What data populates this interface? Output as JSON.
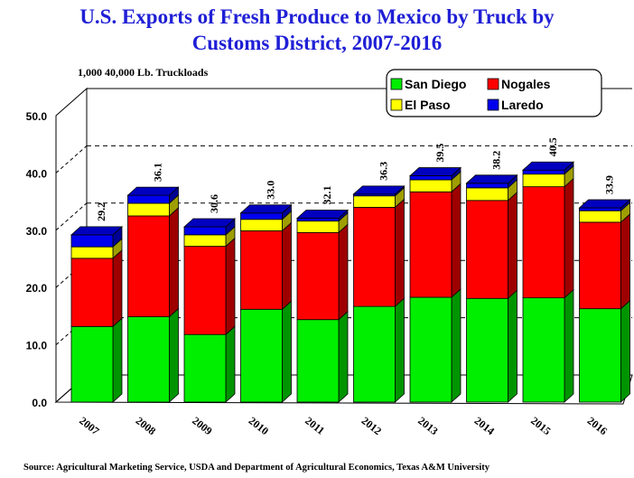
{
  "chart_data": {
    "type": "bar",
    "stacked": true,
    "title_line1": "U.S. Exports of Fresh Produce to Mexico by Truck by",
    "title_line2": "Customs District, 2007-2016",
    "ylabel": "1,000 40,000 Lb. Truckloads",
    "ylim": [
      0,
      50
    ],
    "yticks": [
      "0.0",
      "10.0",
      "20.0",
      "30.0",
      "40.0",
      "50.0"
    ],
    "categories": [
      "2007",
      "2008",
      "2009",
      "2010",
      "2011",
      "2012",
      "2013",
      "2014",
      "2015",
      "2016"
    ],
    "series": [
      {
        "name": "San Diego",
        "color": "#00ee00",
        "values": [
          13.2,
          14.9,
          11.8,
          16.2,
          14.4,
          16.7,
          18.3,
          18.1,
          18.2,
          16.3
        ]
      },
      {
        "name": "Nogales",
        "color": "#ff0000",
        "values": [
          11.9,
          17.6,
          15.4,
          13.7,
          15.2,
          17.3,
          18.4,
          17.1,
          19.4,
          15.1
        ]
      },
      {
        "name": "El Paso",
        "color": "#ffff00",
        "values": [
          2.0,
          2.2,
          2.0,
          2.0,
          2.0,
          2.0,
          2.1,
          2.2,
          2.2,
          2.0
        ]
      },
      {
        "name": "Laredo",
        "color": "#0000ee",
        "values": [
          2.1,
          1.4,
          1.4,
          1.1,
          0.5,
          0.3,
          0.7,
          0.8,
          0.7,
          0.5
        ]
      }
    ],
    "totals": [
      "29.2",
      "36.1",
      "30.6",
      "33.0",
      "32.1",
      "36.3",
      "39.5",
      "38.2",
      "40.5",
      "33.9"
    ],
    "grid": "dashed horizontal",
    "legend_position": "top-right"
  },
  "source": "Source: Agricultural Marketing Service, USDA and Department of Agricultural Economics, Texas A&M University"
}
